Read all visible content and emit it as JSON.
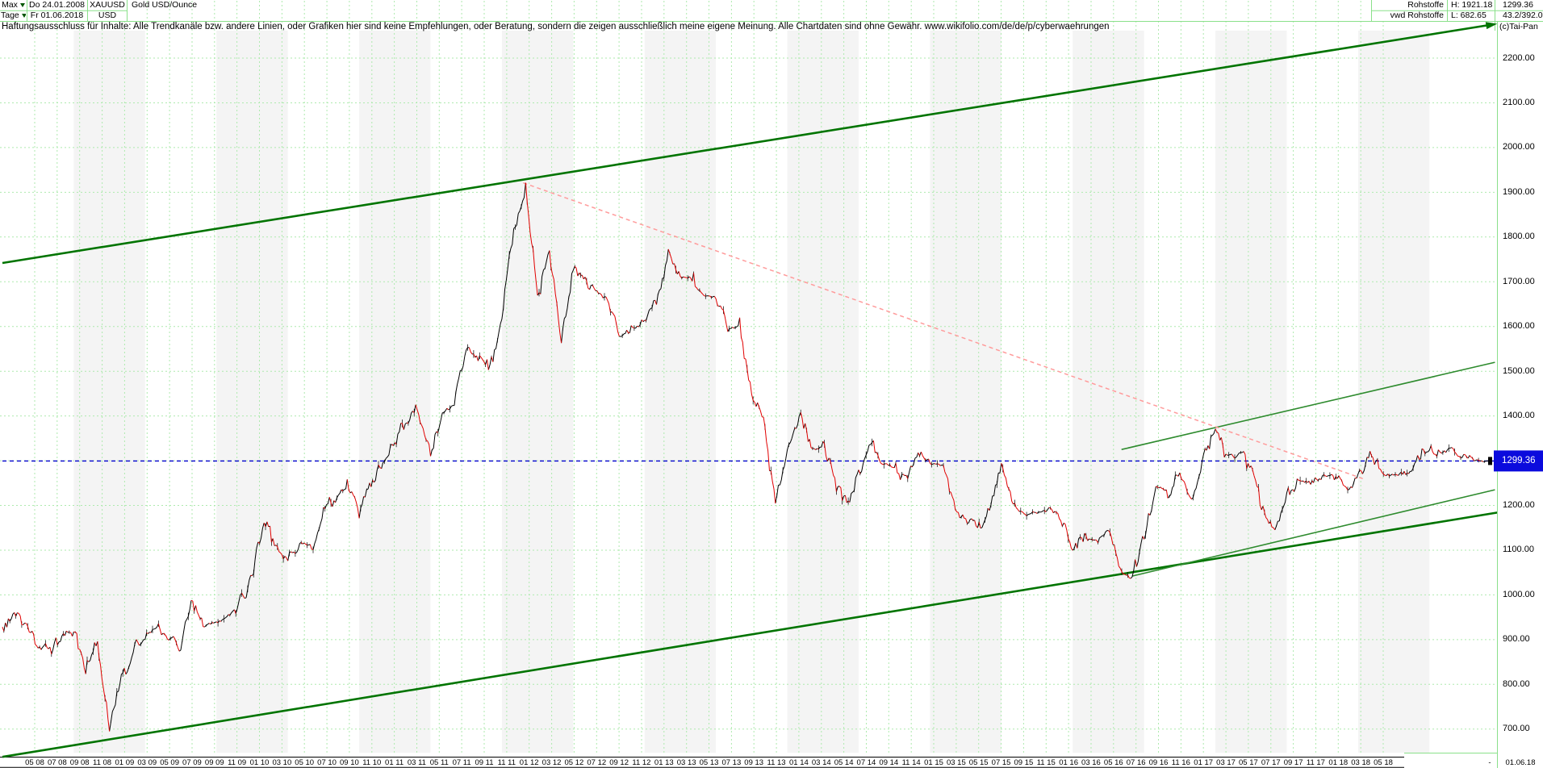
{
  "header": {
    "range_selector": "Max",
    "period_selector": "Tage",
    "date_from": "Do 24.01.2008",
    "date_to": "Fr 01.06.2018",
    "symbol": "XAUUSD",
    "currency": "USD",
    "instrument": "Gold USD/Ounce",
    "feed_line1": "Rohstoffe",
    "feed_line2": "vwd Rohstoffe",
    "high_label": "H: 1921.18",
    "low_label": "L: 682.65",
    "last_price": "1299.36",
    "change_info": "43.2/392.0",
    "copyright": "(c)Tai-Pan"
  },
  "disclaimer": "Haftungsausschluss für Inhalte: Alle Trendkanäle bzw. andere Linien, oder Grafiken hier sind keine Empfehlungen, oder Beratung, sondern die zeigen ausschließlich meine eigene Meinung. Alle Chartdaten sind ohne Gewähr.  www.wikifolio.com/de/de/p/cyberwaehrungen",
  "price_marker": {
    "label": "1299.36"
  },
  "colors": {
    "dark_green": "#007400",
    "medium_green": "#2e8b2e",
    "pink": "#ff9b9b",
    "blue": "#0000cd",
    "grid_green": "#aeeaae",
    "border_green": "#8ae08a",
    "band_gray": "#f4f4f4",
    "price_black": "#000000",
    "price_red": "#e10000",
    "box_blue": "#0b0bdd"
  },
  "chart_data": {
    "type": "line",
    "title": "Gold USD/Ounce",
    "symbol": "XAUUSD",
    "period": "Tage",
    "start_date": "24.01.2008",
    "end_date": "01.06.2018",
    "unit": "USD/Ounce",
    "high": 1921.18,
    "low": 682.65,
    "last": 1299.36,
    "ylim": [
      700,
      2200
    ],
    "grid": true,
    "y_tick_labels": [
      "2200.00",
      "2100.00",
      "2000.00",
      "1900.00",
      "1800.00",
      "1700.00",
      "1600.00",
      "1500.00",
      "1400.00",
      "1300.00",
      "1200.00",
      "1100.00",
      "1000.00",
      "900.00",
      "800.00",
      "700.00"
    ],
    "x_tick_labels": [
      "05 08",
      "07 08",
      "09 08",
      "11 08",
      "01 09",
      "03 09",
      "05 09",
      "07 09",
      "09 09",
      "11 09",
      "01 10",
      "03 10",
      "05 10",
      "07 10",
      "09 10",
      "11 10",
      "01 11",
      "03 11",
      "05 11",
      "07 11",
      "09 11",
      "11 11",
      "01 12",
      "03 12",
      "05 12",
      "07 12",
      "09 12",
      "11 12",
      "01 13",
      "03 13",
      "05 13",
      "07 13",
      "09 13",
      "11 13",
      "01 14",
      "03 14",
      "05 14",
      "07 14",
      "09 14",
      "11 14",
      "01 15",
      "03 15",
      "05 15",
      "07 15",
      "09 15",
      "11 15",
      "01 16",
      "03 16",
      "05 16",
      "07 16",
      "09 16",
      "11 16",
      "01 17",
      "03 17",
      "05 17",
      "07 17",
      "09 17",
      "11 17",
      "01 18",
      "03 18",
      "05 18",
      "-",
      "01.06.18"
    ],
    "start_month": "2008-01",
    "end_month": "2018-06",
    "monthly_close": [
      923,
      971,
      933,
      871,
      885,
      930,
      918,
      833,
      884,
      695,
      790,
      869,
      919,
      952,
      916,
      883,
      975,
      934,
      939,
      955,
      995,
      1040,
      1175,
      1096,
      1078,
      1118,
      1113,
      1179,
      1215,
      1244,
      1169,
      1246,
      1307,
      1342,
      1385,
      1421,
      1327,
      1411,
      1439,
      1563,
      1536,
      1500,
      1628,
      1830,
      1921.18,
      1650,
      1780,
      1564,
      1737,
      1696,
      1662,
      1651,
      1558,
      1598,
      1614,
      1648,
      1776,
      1719,
      1712,
      1664,
      1664,
      1588,
      1598,
      1440,
      1394,
      1192,
      1323,
      1394,
      1326,
      1324,
      1253,
      1202,
      1251,
      1326,
      1291,
      1288,
      1250,
      1315,
      1285,
      1287,
      1216,
      1164,
      1142,
      1184,
      1283,
      1213,
      1184,
      1184,
      1190,
      1172,
      1095,
      1134,
      1115,
      1142,
      1061,
      1046,
      1118,
      1234,
      1232,
      1292,
      1215,
      1322,
      1375,
      1309,
      1316,
      1272,
      1178,
      1131,
      1210,
      1248,
      1249,
      1268,
      1269,
      1242,
      1269,
      1321,
      1280,
      1271,
      1275,
      1303,
      1345,
      1318,
      1325,
      1315,
      1298,
      1299.36
    ],
    "trendlines": [
      {
        "name": "upper-channel-line",
        "style": "solid",
        "color_key": "dark_green",
        "width": 2.6,
        "t1": 0,
        "p1": 1742,
        "t2": 125.3,
        "p2": 2275,
        "arrow": true
      },
      {
        "name": "lower-channel-line",
        "style": "solid",
        "color_key": "dark_green",
        "width": 2.6,
        "t1": 0,
        "p1": 638,
        "t2": 125.7,
        "p2": 1184
      },
      {
        "name": "wedge-upper-line",
        "style": "solid",
        "color_key": "medium_green",
        "width": 1.6,
        "t1": 94.1,
        "p1": 1325,
        "t2": 125.5,
        "p2": 1520
      },
      {
        "name": "wedge-lower-line",
        "style": "solid",
        "color_key": "medium_green",
        "width": 1.6,
        "t1": 95.0,
        "p1": 1042,
        "t2": 125.5,
        "p2": 1235
      },
      {
        "name": "downtrend-from-high",
        "style": "dashed",
        "color_key": "pink",
        "width": 1.5,
        "t1": 43.8,
        "p1": 1921,
        "t2": 114.6,
        "p2": 1258
      },
      {
        "name": "last-price-line",
        "style": "dashed",
        "color_key": "blue",
        "width": 1.4,
        "t1": 0,
        "p1": 1299.36,
        "t2": 125.7,
        "p2": 1299.36
      }
    ]
  }
}
